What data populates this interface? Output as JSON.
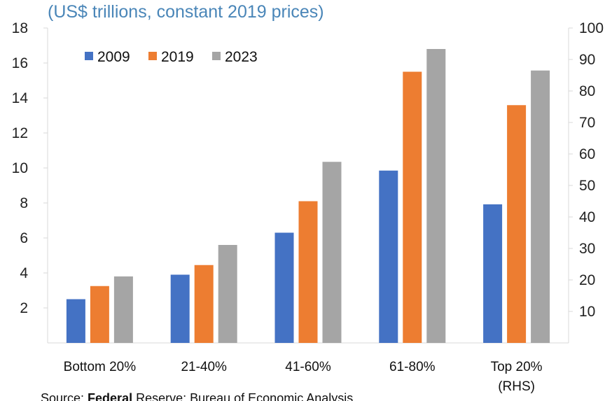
{
  "chart_data": {
    "type": "bar",
    "subtitle": "(US$ trillions, constant 2019 prices)",
    "categories": [
      "Bottom 20%",
      "21-40%",
      "41-60%",
      "61-80%",
      "Top 20%"
    ],
    "category_second_line": [
      "",
      "",
      "",
      "",
      "(RHS)"
    ],
    "series": [
      {
        "name": "2009",
        "color": "#4472c4",
        "values": [
          2.5,
          3.9,
          6.3,
          9.85,
          44.0
        ]
      },
      {
        "name": "2019",
        "color": "#ed7d31",
        "values": [
          3.25,
          4.45,
          8.1,
          15.5,
          75.5
        ]
      },
      {
        "name": "2023",
        "color": "#a5a5a5",
        "values": [
          3.8,
          5.6,
          10.35,
          16.8,
          86.5
        ]
      }
    ],
    "left_axis": {
      "min": 0,
      "max": 18,
      "ticks": [
        "2",
        "4",
        "6",
        "8",
        "10",
        "12",
        "14",
        "16",
        "18"
      ]
    },
    "right_axis": {
      "min": 0,
      "max": 100,
      "ticks": [
        "10",
        "20",
        "30",
        "40",
        "50",
        "60",
        "70",
        "80",
        "90",
        "100"
      ]
    },
    "rhs_category_index": 4,
    "grid": false,
    "legend_position": "top-left"
  },
  "source": {
    "prefix": "Source: ",
    "bold": "Federal",
    "rest": " Reserve; Bureau of Economic Analysis"
  }
}
